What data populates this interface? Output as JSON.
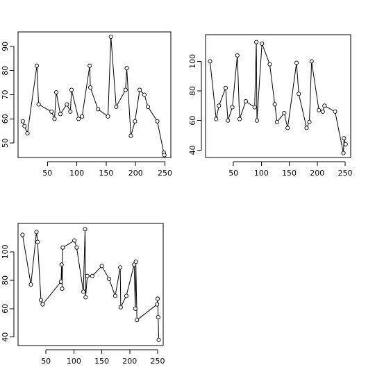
{
  "chart_data": [
    {
      "type": "line",
      "title": "",
      "xlabel": "",
      "ylabel": "",
      "xlim": [
        0,
        260
      ],
      "ylim": [
        44,
        96
      ],
      "xticks": [
        50,
        100,
        150,
        200,
        250
      ],
      "yticks": [
        50,
        60,
        70,
        80,
        90
      ],
      "markers": "open-circle",
      "x": [
        8,
        11,
        16,
        32,
        35,
        57,
        62,
        65,
        72,
        83,
        89,
        91,
        103,
        109,
        122,
        123,
        136,
        153,
        158,
        167,
        183,
        185,
        192,
        199,
        207,
        215,
        221,
        237,
        248,
        249
      ],
      "y": [
        59,
        57,
        54,
        82,
        66,
        63,
        60,
        71,
        62,
        66,
        63,
        72,
        60,
        61,
        82,
        73,
        64,
        61,
        94,
        65,
        72,
        81,
        53,
        59,
        72,
        70,
        65,
        59,
        46,
        45
      ]
    },
    {
      "type": "line",
      "title": "",
      "xlabel": "",
      "ylabel": "",
      "xlim": [
        0,
        260
      ],
      "ylim": [
        35,
        118
      ],
      "xticks": [
        50,
        100,
        150,
        200,
        250
      ],
      "yticks": [
        40,
        60,
        80,
        100
      ],
      "markers": "open-circle",
      "x": [
        8,
        19,
        24,
        36,
        40,
        48,
        57,
        61,
        72,
        88,
        91,
        92,
        101,
        115,
        124,
        128,
        141,
        147,
        163,
        167,
        181,
        186,
        190,
        203,
        210,
        213,
        232,
        247,
        248,
        251
      ],
      "y": [
        100,
        61,
        70,
        82,
        60,
        69,
        104,
        61,
        73,
        69,
        113,
        60,
        112,
        98,
        71,
        59,
        65,
        55,
        99,
        78,
        55,
        59,
        100,
        67,
        66,
        70,
        66,
        38,
        48,
        44
      ]
    },
    {
      "type": "line",
      "title": "",
      "xlabel": "",
      "ylabel": "",
      "xlim": [
        0,
        260
      ],
      "ylim": [
        34,
        120
      ],
      "xticks": [
        50,
        100,
        150,
        200,
        250
      ],
      "yticks": [
        40,
        60,
        80,
        100
      ],
      "markers": "open-circle",
      "x": [
        8,
        23,
        33,
        35,
        41,
        44,
        77,
        78,
        79,
        80,
        101,
        105,
        117,
        120,
        121,
        124,
        133,
        150,
        163,
        174,
        183,
        184,
        194,
        208,
        210,
        211,
        213,
        249,
        250,
        251,
        252
      ],
      "y": [
        112,
        77,
        114,
        107,
        66,
        63,
        79,
        91,
        74,
        103,
        108,
        103,
        72,
        116,
        68,
        83,
        83,
        90,
        81,
        69,
        89,
        61,
        69,
        91,
        60,
        93,
        52,
        63,
        67,
        54,
        38
      ]
    }
  ]
}
